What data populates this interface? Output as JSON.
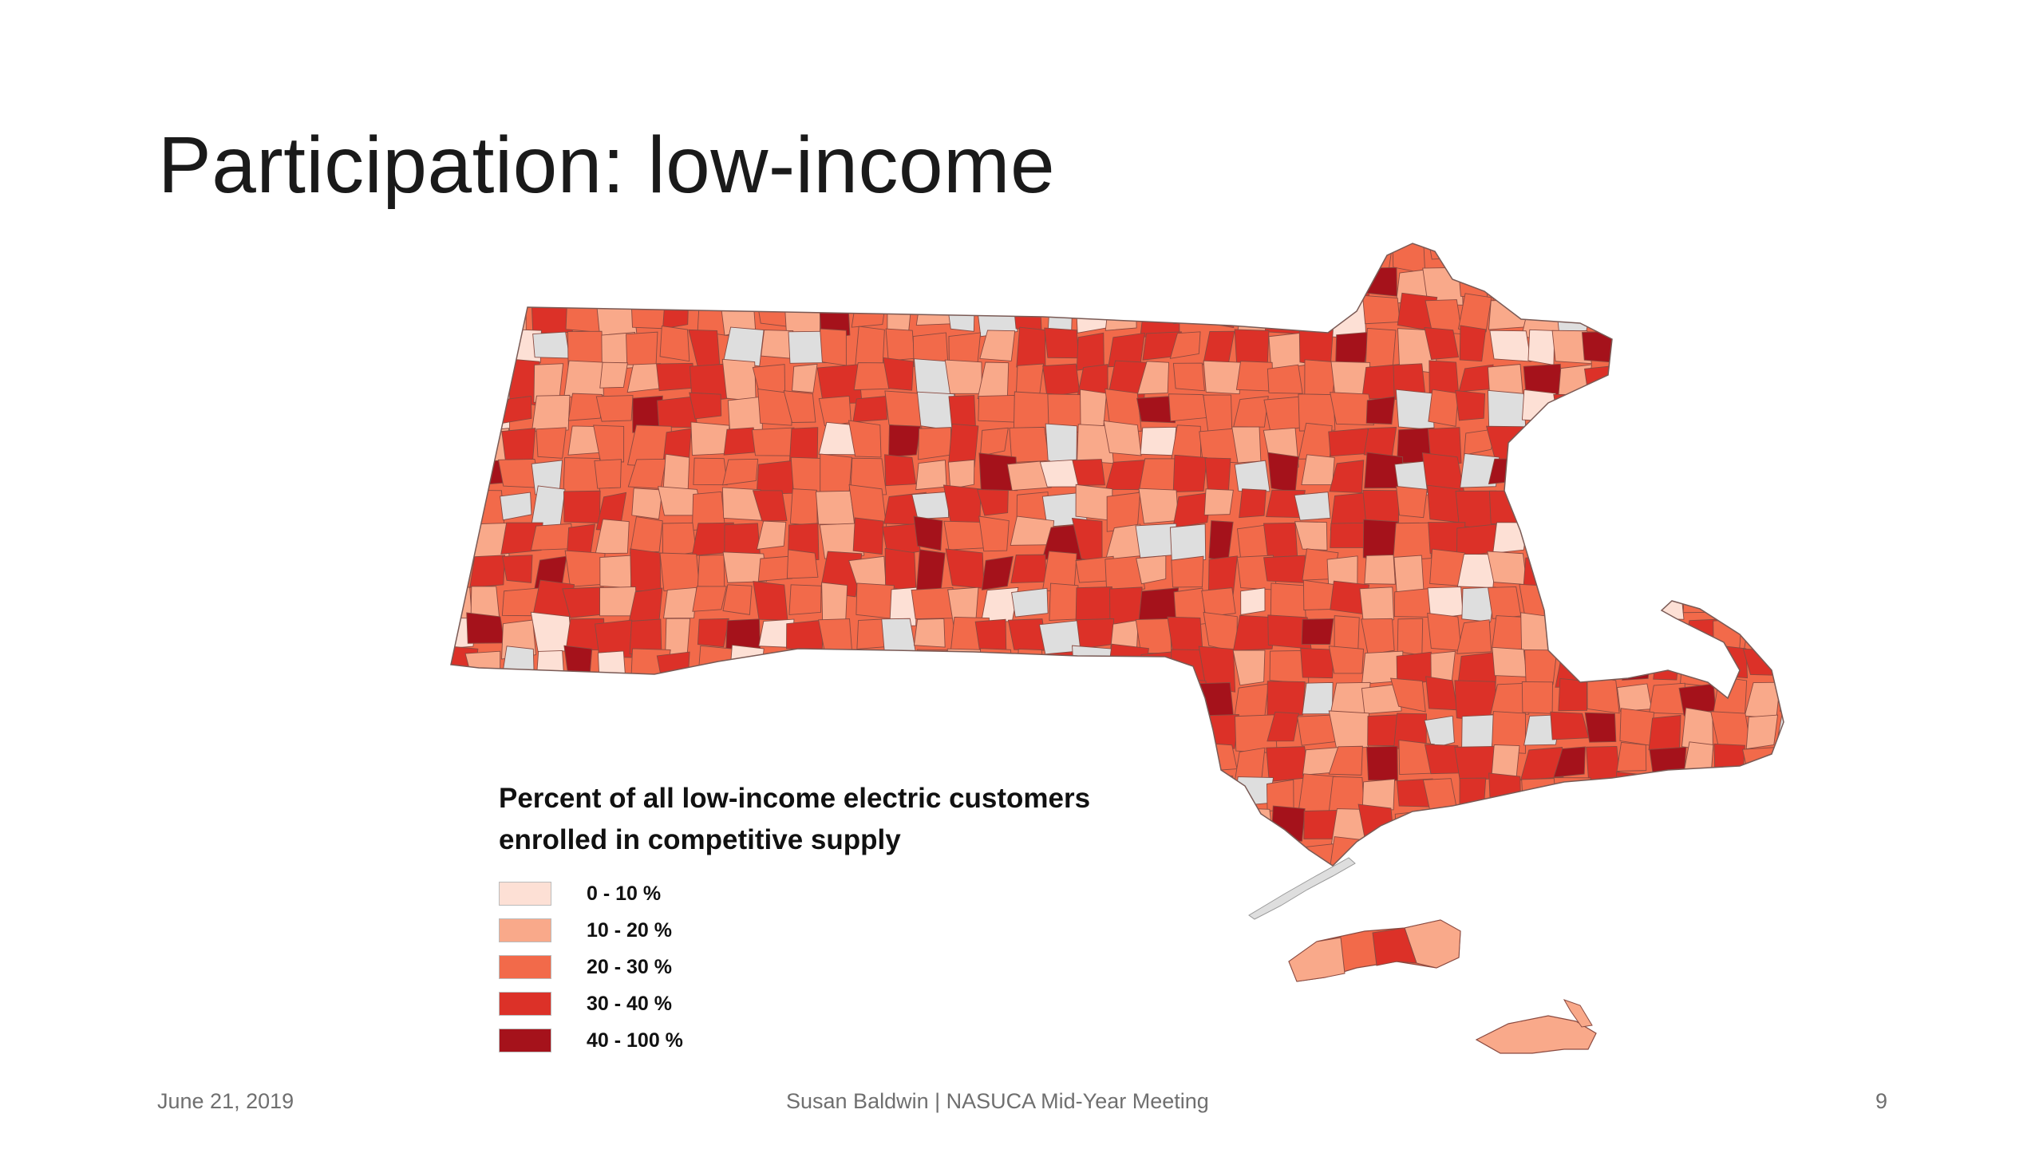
{
  "slide": {
    "title": "Participation: low-income",
    "footer": {
      "date": "June 21, 2019",
      "center": "Susan Baldwin   |   NASUCA Mid-Year Meeting",
      "page": "9"
    }
  },
  "map": {
    "region": "Massachusetts municipalities",
    "legend": {
      "title": "Percent of all low-income electric customers enrolled in competitive supply",
      "classes": [
        {
          "label": "0 - 10 %",
          "color": "#fde0d5"
        },
        {
          "label": "10 - 20 %",
          "color": "#f9a98a"
        },
        {
          "label": "20 - 30 %",
          "color": "#f26a4a"
        },
        {
          "label": "30 - 40 %",
          "color": "#dc3128"
        },
        {
          "label": "40 - 100 %",
          "color": "#a5121b"
        }
      ],
      "no_data_color": "#dedede"
    }
  }
}
